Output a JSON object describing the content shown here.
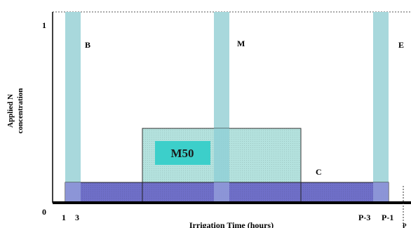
{
  "y_axis": {
    "label_line1": "Applied N",
    "label_line2": "concentration",
    "tick_top": "1",
    "tick_origin": "0"
  },
  "x_axis": {
    "label": "Irrigation Time (hours)",
    "tick_1": "1",
    "tick_3": "3",
    "tick_p3": "P-3",
    "tick_p1": "P-1",
    "tick_p_cut": "P"
  },
  "labels": {
    "b": "B",
    "m": "M",
    "e": "E",
    "c": "C",
    "m50": "M50"
  },
  "colors": {
    "teal_band": "#a8d8dc",
    "blue_bar": "#6f6fc8",
    "m50_block": "#b4e2de",
    "m50_badge": "#3ccfca",
    "axis": "#000000"
  }
}
